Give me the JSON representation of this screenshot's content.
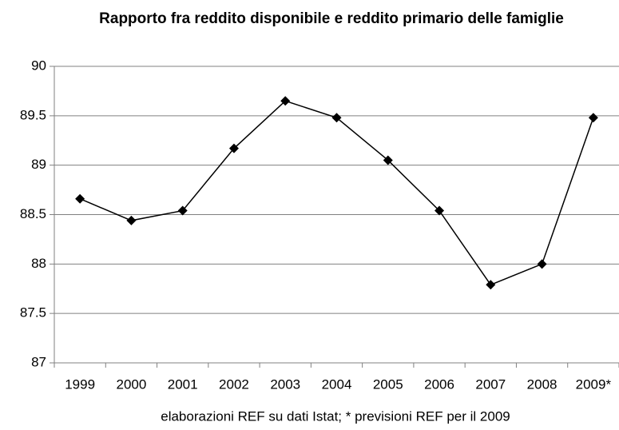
{
  "chart_data": {
    "type": "line",
    "title": "Rapporto fra reddito disponibile e reddito primario delle famiglie",
    "note": "elaborazioni REF su dati Istat; * previsioni REF per il 2009",
    "categories": [
      "1999",
      "2000",
      "2001",
      "2002",
      "2003",
      "2004",
      "2005",
      "2006",
      "2007",
      "2008",
      "2009*"
    ],
    "series": [
      {
        "name": "Rapporto",
        "color": "#000000",
        "values": [
          88.66,
          88.44,
          88.54,
          89.17,
          89.65,
          89.48,
          89.05,
          88.54,
          87.79,
          88.0,
          89.48
        ]
      }
    ],
    "ylim": [
      87,
      90
    ],
    "yticks": [
      87,
      87.5,
      88,
      88.5,
      89,
      89.5,
      90
    ],
    "grid": true
  }
}
